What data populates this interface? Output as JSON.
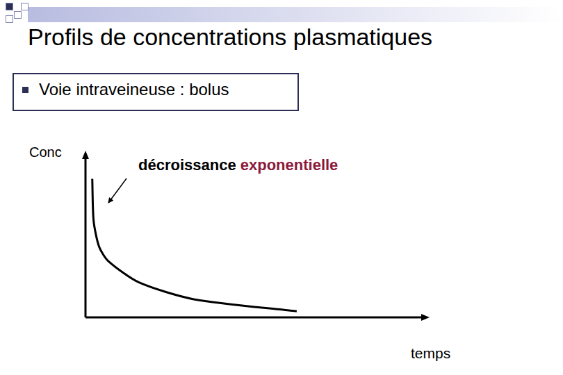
{
  "chart_data": {
    "type": "line",
    "title": "Profils de concentrations plasmatiques",
    "subtitle": "Voie intraveineuse : bolus",
    "y_label": "Conc",
    "x_label": "temps",
    "annotations": [
      {
        "text": "décroissance exponentielle",
        "highlight": "exponentielle"
      }
    ],
    "x": [
      0.2,
      0.24,
      0.4,
      0.67,
      1.58,
      3.2,
      6.24
    ],
    "values": [
      8.6,
      6.0,
      4.4,
      3.5,
      2.17,
      1.125,
      0.375
    ],
    "color": "#000000",
    "xlim": [
      0,
      10
    ],
    "ylim": [
      0,
      10
    ],
    "tick_labels": false,
    "grid": false
  }
}
